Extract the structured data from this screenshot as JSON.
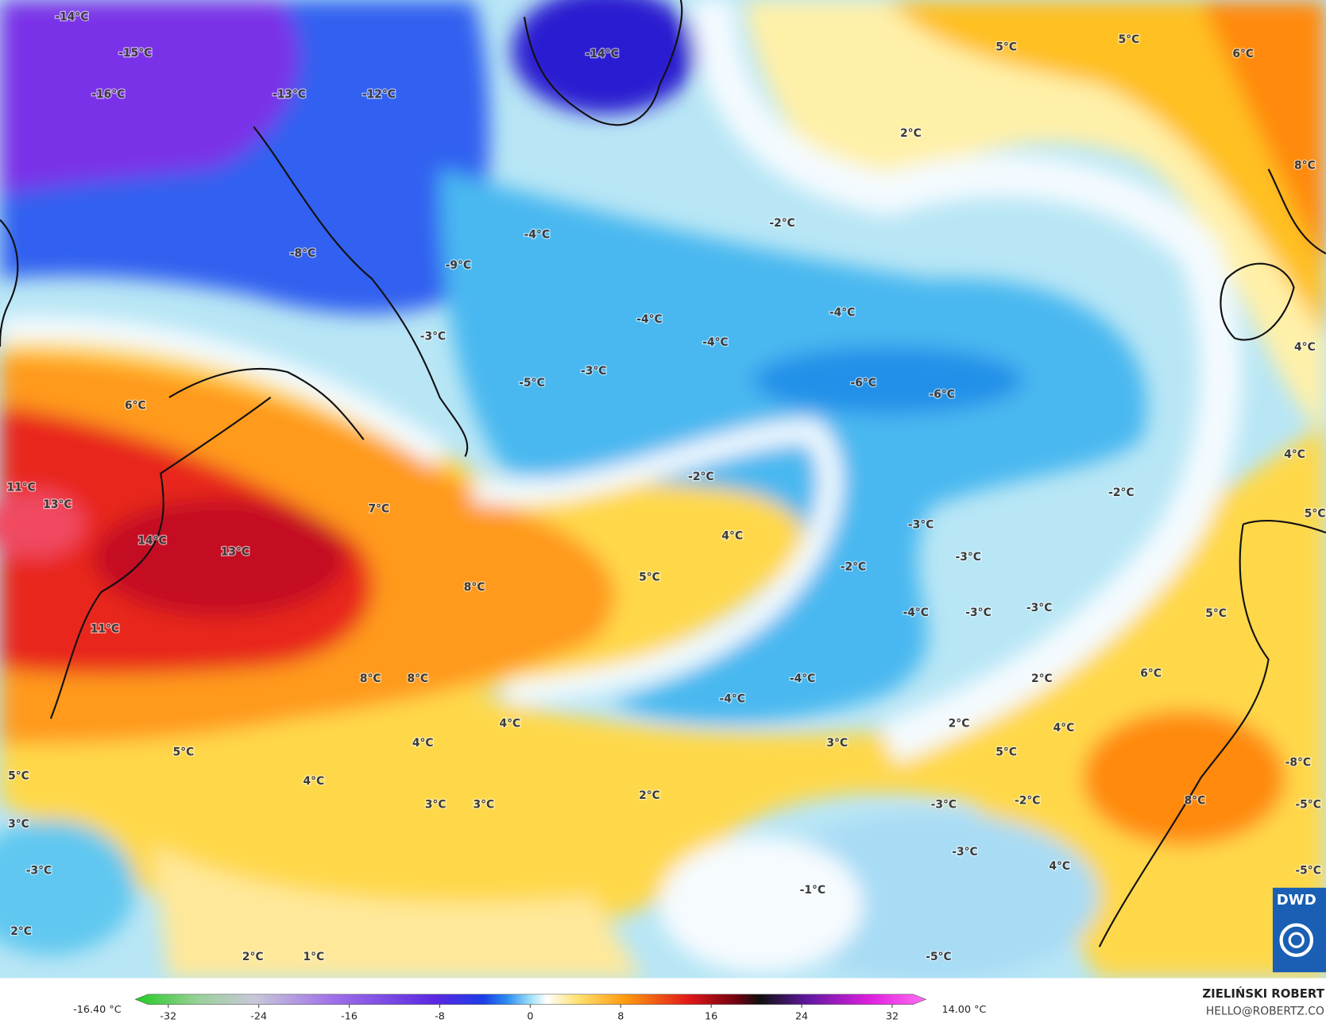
{
  "map": {
    "labels": [
      "-14°C",
      "-15°C",
      "-16°C",
      "-13°C",
      "-12°C",
      "-14°C",
      "5°C",
      "5°C",
      "6°C",
      "2°C",
      "8°C",
      "-2°C",
      "-4°C",
      "-8°C",
      "-9°C",
      "-4°C",
      "-4°C",
      "-4°C",
      "4°C",
      "-3°C",
      "-3°C",
      "-5°C",
      "-6°C",
      "-6°C",
      "6°C",
      "4°C",
      "-2°C",
      "-2°C",
      "11°C",
      "13°C",
      "7°C",
      "4°C",
      "-3°C",
      "5°C",
      "14°C",
      "13°C",
      "-3°C",
      "-2°C",
      "5°C",
      "8°C",
      "-3°C",
      "-4°C",
      "-3°C",
      "5°C",
      "11°C",
      "8°C",
      "8°C",
      "6°C",
      "2°C",
      "-4°C",
      "-4°C",
      "4°C",
      "2°C",
      "4°C",
      "4°C",
      "3°C",
      "5°C",
      "5°C",
      "5°C",
      "-8°C",
      "4°C",
      "2°C",
      "-2°C",
      "8°C",
      "3°C",
      "3°C",
      "-3°C",
      "-5°C",
      "3°C",
      "-3°C",
      "-3°C",
      "4°C",
      "-5°C",
      "-1°C",
      "2°C",
      "2°C",
      "1°C",
      "-5°C"
    ]
  },
  "colorbar": {
    "ticks": [
      -32,
      -24,
      -16,
      -8,
      0,
      8,
      16,
      24,
      32
    ],
    "min_label": "-16.40 °C",
    "max_label": "14.00 °C"
  },
  "credits": {
    "author": "ZIELIŃSKI ROBERT",
    "email": "HELLO@ROBERTZ.CO"
  },
  "logo": "DWD"
}
